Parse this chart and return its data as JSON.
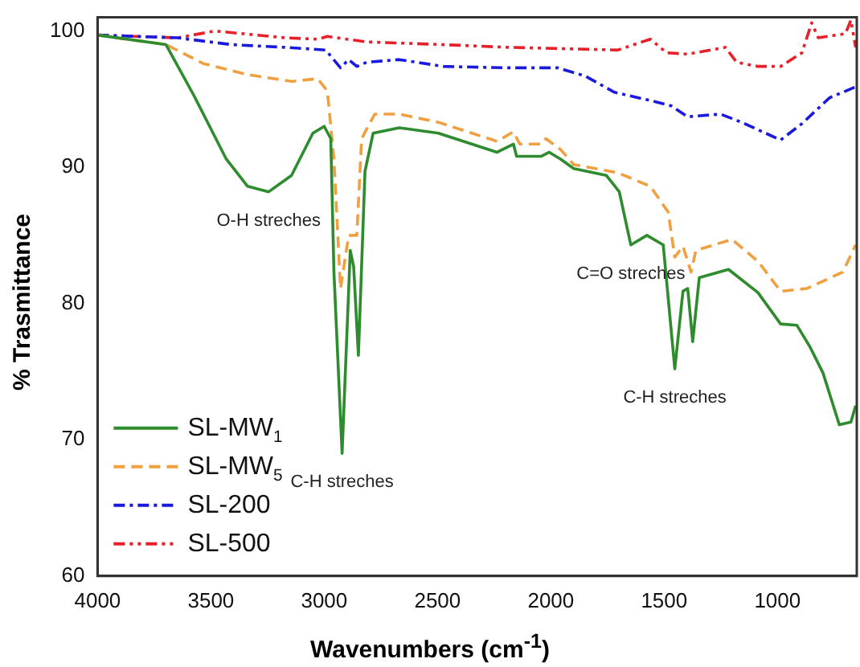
{
  "chart_data": {
    "type": "line",
    "xlabel": "Wavenumbers (cm$^{-1}$)",
    "ylabel": "% Trasmittance",
    "xlim": [
      4000,
      650
    ],
    "xticks": [
      4000,
      3500,
      3000,
      2500,
      2000,
      1500,
      1000
    ],
    "ylim": [
      60,
      101
    ],
    "yticks": [
      60,
      70,
      80,
      90,
      100
    ],
    "grid": false,
    "legend": "bottom left",
    "marker": "none",
    "annotations": [
      {
        "text": "O-H streches",
        "x": 3245,
        "y": 88.2
      },
      {
        "text": "C-H streches",
        "x": 2921,
        "y": 69.0
      },
      {
        "text": "C=O streches",
        "x": 1647,
        "y": 84.3
      },
      {
        "text": "C-H streches",
        "x": 1453,
        "y": 75.2
      }
    ],
    "series": [
      {
        "name": "SL-MW$_{1}$",
        "color": "#2e8b2e",
        "line_style": "solid",
        "x": [
          4000,
          3698,
          3576,
          3432,
          3338,
          3245,
          3144,
          3050,
          3000,
          2971,
          2957,
          2921,
          2885,
          2870,
          2849,
          2820,
          2784,
          2669,
          2496,
          2237,
          2165,
          2151,
          2043,
          2007,
          1957,
          1899,
          1755,
          1698,
          1647,
          1576,
          1504,
          1453,
          1417,
          1396,
          1374,
          1345,
          1216,
          1086,
          986,
          914,
          856,
          799,
          727,
          676,
          655
        ],
        "values": [
          99.7,
          99.0,
          95.3,
          90.6,
          88.6,
          88.2,
          89.4,
          92.5,
          93.0,
          92.1,
          82.3,
          69.0,
          83.9,
          82.7,
          76.2,
          89.7,
          92.5,
          92.9,
          92.5,
          91.1,
          91.7,
          90.8,
          90.8,
          91.1,
          90.6,
          89.9,
          89.4,
          88.2,
          84.3,
          85.0,
          84.3,
          75.2,
          80.9,
          81.1,
          77.2,
          81.9,
          82.5,
          80.8,
          78.5,
          78.4,
          76.8,
          74.9,
          71.1,
          71.3,
          72.5
        ]
      },
      {
        "name": "SL-MW$_{5}$",
        "color": "#f0a040",
        "line_style": "dashed",
        "x": [
          4000,
          3698,
          3532,
          3338,
          3144,
          3029,
          2986,
          2957,
          2928,
          2892,
          2856,
          2835,
          2777,
          2669,
          2496,
          2237,
          2165,
          2137,
          2043,
          2022,
          1957,
          1899,
          1705,
          1561,
          1482,
          1453,
          1417,
          1381,
          1360,
          1201,
          1086,
          986,
          871,
          712,
          655
        ],
        "values": [
          99.7,
          99.0,
          97.6,
          96.8,
          96.3,
          96.5,
          95.6,
          90.6,
          81.1,
          85.0,
          85.0,
          92.1,
          93.9,
          93.9,
          93.3,
          91.9,
          92.6,
          91.7,
          91.7,
          92.1,
          91.3,
          90.2,
          89.6,
          88.6,
          86.7,
          83.4,
          84.2,
          82.3,
          83.9,
          84.7,
          83.1,
          80.9,
          81.1,
          82.3,
          84.3
        ]
      },
      {
        "name": "SL-200",
        "color": "#1a1adf",
        "line_style": "dashdot",
        "x": [
          4000,
          3647,
          3410,
          3173,
          2993,
          2928,
          2892,
          2856,
          2813,
          2669,
          2475,
          2209,
          1971,
          1849,
          1719,
          1561,
          1468,
          1396,
          1252,
          1158,
          986,
          892,
          770,
          655
        ],
        "values": [
          99.7,
          99.5,
          99.0,
          98.8,
          98.6,
          97.3,
          97.9,
          97.4,
          97.7,
          97.9,
          97.4,
          97.3,
          97.3,
          96.7,
          95.5,
          94.9,
          94.5,
          93.7,
          93.9,
          93.3,
          92.0,
          93.2,
          95.1,
          95.9
        ]
      },
      {
        "name": "SL-500",
        "color": "#e8202a",
        "line_style": "dashdotdot",
        "x": [
          4000,
          3647,
          3482,
          3173,
          3029,
          2986,
          2813,
          2475,
          2187,
          1705,
          1561,
          1489,
          1396,
          1230,
          1180,
          1086,
          986,
          892,
          849,
          820,
          700,
          676,
          655
        ],
        "values": [
          99.7,
          99.5,
          100.0,
          99.5,
          99.4,
          99.6,
          99.2,
          99.0,
          98.8,
          98.6,
          99.4,
          98.4,
          98.3,
          98.8,
          97.7,
          97.4,
          97.4,
          98.4,
          100.6,
          99.5,
          99.8,
          100.8,
          98.8
        ]
      }
    ]
  }
}
